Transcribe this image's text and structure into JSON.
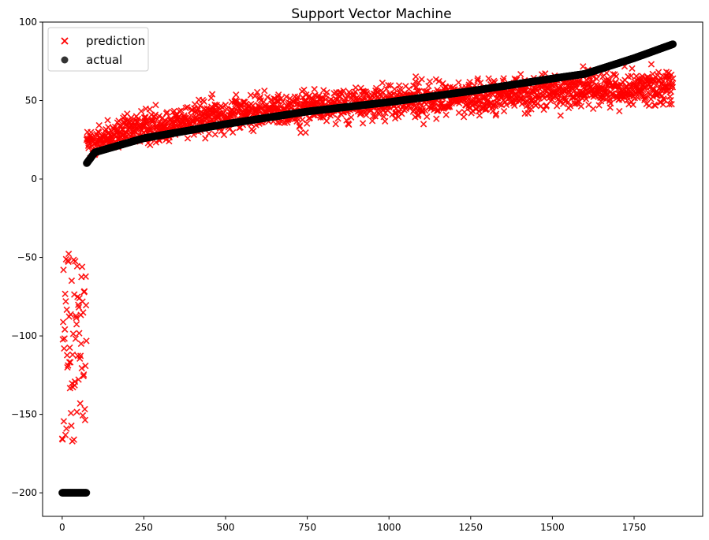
{
  "chart_data": {
    "type": "scatter",
    "title": "Support Vector Machine",
    "xlabel": "",
    "ylabel": "",
    "xlim": [
      -60,
      1960
    ],
    "ylim": [
      -215,
      100
    ],
    "x_ticks": [
      0,
      250,
      500,
      750,
      1000,
      1250,
      1500,
      1750
    ],
    "y_ticks": [
      100,
      50,
      0,
      -50,
      -100,
      -150,
      -200
    ],
    "x_tick_labels": [
      "0",
      "250",
      "500",
      "750",
      "1000",
      "1250",
      "1500",
      "1750"
    ],
    "y_tick_labels": [
      "100",
      "50",
      "0",
      "−50",
      "−100",
      "−150",
      "−200"
    ],
    "grid": false,
    "legend": "top-left",
    "n_points": 1870,
    "outlier_count": 75,
    "series": [
      {
        "name": "prediction",
        "marker": "x",
        "color": "#ff0000",
        "outlier_range": [
          -168,
          -47
        ],
        "trend_x": [
          75,
          250,
          500,
          750,
          1000,
          1250,
          1500,
          1750,
          1870
        ],
        "trend_y": [
          22,
          33,
          41,
          46,
          49,
          52,
          56,
          58,
          60
        ]
      },
      {
        "name": "actual",
        "marker": "o",
        "color": "#000000",
        "outlier_value": -200,
        "trend_x": [
          75,
          100,
          250,
          500,
          750,
          1000,
          1250,
          1500,
          1600,
          1750,
          1870
        ],
        "trend_y": [
          10,
          17,
          26,
          35,
          43,
          49,
          56,
          64,
          67,
          77,
          86
        ]
      }
    ]
  }
}
